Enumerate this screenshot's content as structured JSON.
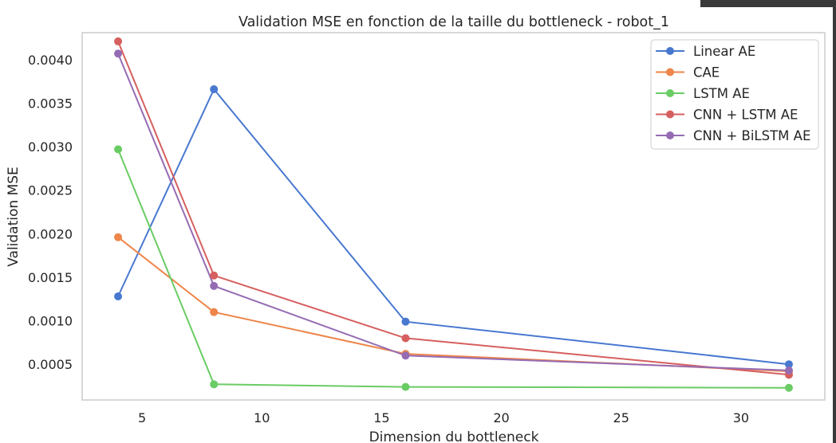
{
  "chart_data": {
    "type": "line",
    "title": "Validation MSE en fonction de la taille du bottleneck - robot_1",
    "xlabel": "Dimension du bottleneck",
    "ylabel": "Validation MSE",
    "x": [
      4,
      8,
      16,
      32
    ],
    "xlim": [
      2.5,
      33.5
    ],
    "ylim": [
      9e-05,
      0.00431
    ],
    "xticks": [
      5,
      10,
      15,
      20,
      25,
      30
    ],
    "xtick_labels": [
      "5",
      "10",
      "15",
      "20",
      "25",
      "30"
    ],
    "yticks": [
      0.0005,
      0.001,
      0.0015,
      0.002,
      0.0025,
      0.003,
      0.0035,
      0.004
    ],
    "ytick_labels": [
      "0.0005",
      "0.0010",
      "0.0015",
      "0.0020",
      "0.0025",
      "0.0030",
      "0.0035",
      "0.0040"
    ],
    "grid": false,
    "legend_position": "top-right",
    "series": [
      {
        "name": "Linear AE",
        "color": "#4878d0",
        "values": [
          0.00128,
          0.00366,
          0.00099,
          0.0005
        ]
      },
      {
        "name": "CAE",
        "color": "#ee854a",
        "values": [
          0.00196,
          0.0011,
          0.00062,
          0.00042
        ]
      },
      {
        "name": "LSTM AE",
        "color": "#6acc64",
        "values": [
          0.00297,
          0.00027,
          0.00024,
          0.00023
        ]
      },
      {
        "name": "CNN + LSTM AE",
        "color": "#d65f5f",
        "values": [
          0.00421,
          0.00152,
          0.0008,
          0.00038
        ]
      },
      {
        "name": "CNN + BiLSTM AE",
        "color": "#956cb4",
        "values": [
          0.00407,
          0.0014,
          0.0006,
          0.00043
        ]
      }
    ]
  }
}
